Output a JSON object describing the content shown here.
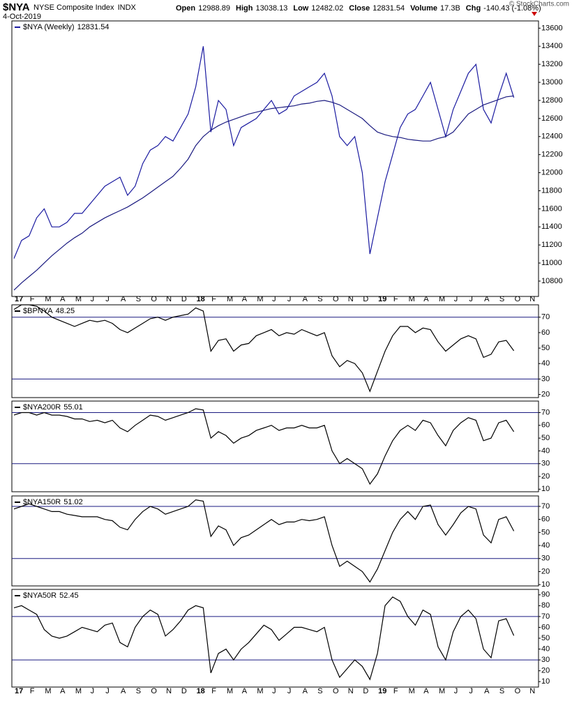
{
  "header": {
    "symbol": "$NYA",
    "name": "NYSE Composite Index",
    "exchange": "INDX",
    "date": "4-Oct-2019",
    "copyright": "© StockCharts.com",
    "stats": [
      {
        "label": "Open",
        "value": 12988.89
      },
      {
        "label": "High",
        "value": 13038.13
      },
      {
        "label": "Low",
        "value": 12482.02
      },
      {
        "label": "Close",
        "value": 12831.54
      },
      {
        "label": "Volume",
        "value": "17.3B"
      },
      {
        "label": "Chg",
        "value": "-140.43 (-1.08%)"
      }
    ]
  },
  "chart_data": [
    {
      "type": "line",
      "categories": [
        "17",
        null,
        "F",
        null,
        "M",
        null,
        "A",
        null,
        "M",
        null,
        "J",
        null,
        "J",
        null,
        "A",
        null,
        "S",
        null,
        "O",
        null,
        "N",
        null,
        "D",
        null,
        "18",
        null,
        "F",
        null,
        "M",
        null,
        "A",
        null,
        "M",
        null,
        "J",
        null,
        "J",
        null,
        "A",
        null,
        "S",
        null,
        "O",
        null,
        "N",
        null,
        "D",
        null,
        "19",
        null,
        "F",
        null,
        "M",
        null,
        "A",
        null,
        "M",
        null,
        "J",
        null,
        "J",
        null,
        "A",
        null,
        "S",
        null,
        "O",
        null,
        "N",
        null
      ],
      "ylim": [
        10630,
        13680
      ],
      "yticks": [
        10800,
        11000,
        11200,
        11400,
        11600,
        11800,
        12000,
        12200,
        12400,
        12600,
        12800,
        13000,
        13200,
        13400,
        13600
      ],
      "series": [
        {
          "name": "$NYA (Weekly)",
          "last_value": 12831.54,
          "color": "#1a1aa0",
          "values": [
            11050,
            11250,
            11300,
            11500,
            11600,
            11400,
            11400,
            11450,
            11550,
            11550,
            11650,
            11750,
            11850,
            11900,
            11950,
            11750,
            11850,
            12100,
            12250,
            12300,
            12400,
            12350,
            12500,
            12650,
            12950,
            13400,
            12450,
            12800,
            12700,
            12300,
            12500,
            12550,
            12600,
            12700,
            12800,
            12650,
            12700,
            12850,
            12900,
            12950,
            13000,
            13100,
            12850,
            12400,
            12300,
            12400,
            12000,
            11100,
            11500,
            11900,
            12200,
            12500,
            12650,
            12700,
            12850,
            13000,
            12700,
            12400,
            12700,
            12900,
            13100,
            13200,
            12700,
            12550,
            12850,
            13100,
            12831.54,
            null,
            null,
            null
          ]
        },
        {
          "color": "#1a1a80",
          "values": [
            10700,
            10780,
            10850,
            10920,
            11000,
            11080,
            11150,
            11220,
            11280,
            11330,
            11400,
            11450,
            11500,
            11540,
            11580,
            11620,
            11670,
            11720,
            11780,
            11840,
            11900,
            11960,
            12050,
            12150,
            12300,
            12400,
            12470,
            12520,
            12560,
            12590,
            12620,
            12650,
            12670,
            12690,
            12710,
            12720,
            12730,
            12740,
            12760,
            12770,
            12790,
            12800,
            12780,
            12750,
            12700,
            12650,
            12600,
            12520,
            12450,
            12420,
            12400,
            12390,
            12370,
            12360,
            12350,
            12350,
            12380,
            12400,
            12450,
            12550,
            12650,
            12700,
            12750,
            12780,
            12810,
            12840,
            12850,
            null,
            null,
            null
          ]
        }
      ]
    },
    {
      "type": "line",
      "ylim": [
        18,
        78
      ],
      "yticks": [
        20,
        30,
        40,
        50,
        60,
        70
      ],
      "hlines": [
        70,
        30
      ],
      "series": [
        {
          "name": "$BPNYA",
          "last_value": 48.25,
          "color": "#000000",
          "values": [
            75,
            78,
            78,
            77,
            74,
            70,
            68,
            66,
            64,
            66,
            68,
            67,
            68,
            66,
            62,
            60,
            63,
            66,
            69,
            70,
            68,
            70,
            71,
            72,
            76,
            74,
            48,
            55,
            56,
            48,
            52,
            53,
            58,
            60,
            62,
            58,
            60,
            59,
            62,
            60,
            58,
            60,
            45,
            38,
            42,
            40,
            34,
            22,
            35,
            48,
            58,
            64,
            64,
            60,
            63,
            62,
            54,
            48,
            52,
            56,
            58,
            56,
            44,
            46,
            54,
            55,
            48.25,
            null,
            null,
            null
          ]
        }
      ]
    },
    {
      "type": "line",
      "ylim": [
        8,
        79
      ],
      "yticks": [
        10,
        20,
        30,
        40,
        50,
        60,
        70
      ],
      "hlines": [
        70,
        30
      ],
      "series": [
        {
          "name": "$NYA200R",
          "last_value": 55.01,
          "color": "#000000",
          "values": [
            68,
            70,
            70,
            68,
            70,
            68,
            68,
            67,
            65,
            65,
            63,
            64,
            62,
            64,
            58,
            55,
            60,
            64,
            68,
            67,
            64,
            66,
            68,
            70,
            73,
            72,
            50,
            55,
            52,
            46,
            50,
            52,
            56,
            58,
            60,
            56,
            58,
            58,
            60,
            58,
            58,
            60,
            40,
            30,
            34,
            30,
            26,
            14,
            22,
            36,
            48,
            56,
            60,
            56,
            64,
            62,
            52,
            44,
            56,
            62,
            66,
            64,
            48,
            50,
            62,
            64,
            55.01,
            null,
            null,
            null
          ]
        }
      ]
    },
    {
      "type": "line",
      "ylim": [
        9,
        78
      ],
      "yticks": [
        10,
        20,
        30,
        40,
        50,
        60,
        70
      ],
      "hlines": [
        70,
        30
      ],
      "series": [
        {
          "name": "$NYA150R",
          "last_value": 51.02,
          "color": "#000000",
          "values": [
            68,
            70,
            72,
            70,
            68,
            66,
            66,
            64,
            63,
            62,
            62,
            62,
            60,
            59,
            54,
            52,
            60,
            66,
            70,
            68,
            64,
            66,
            68,
            70,
            75,
            74,
            47,
            55,
            52,
            40,
            46,
            48,
            52,
            56,
            60,
            56,
            58,
            58,
            60,
            59,
            60,
            62,
            40,
            24,
            28,
            24,
            20,
            12,
            22,
            36,
            50,
            60,
            66,
            60,
            70,
            71,
            56,
            48,
            56,
            65,
            70,
            68,
            48,
            42,
            60,
            62,
            51.02,
            null,
            null,
            null
          ]
        }
      ]
    },
    {
      "type": "line",
      "ylim": [
        5,
        95
      ],
      "yticks": [
        10,
        20,
        30,
        40,
        50,
        60,
        70,
        80,
        90
      ],
      "hlines": [
        70,
        30
      ],
      "series": [
        {
          "name": "$NYA50R",
          "last_value": 52.45,
          "color": "#000000",
          "values": [
            78,
            80,
            76,
            72,
            58,
            52,
            50,
            52,
            56,
            60,
            58,
            56,
            62,
            64,
            46,
            42,
            60,
            70,
            76,
            72,
            52,
            58,
            66,
            76,
            80,
            78,
            18,
            36,
            40,
            30,
            40,
            46,
            54,
            62,
            58,
            48,
            54,
            60,
            60,
            58,
            56,
            60,
            30,
            14,
            22,
            30,
            24,
            12,
            36,
            80,
            88,
            84,
            70,
            62,
            76,
            72,
            42,
            30,
            56,
            70,
            76,
            68,
            40,
            32,
            66,
            68,
            52.45,
            null,
            null,
            null
          ]
        }
      ]
    }
  ]
}
